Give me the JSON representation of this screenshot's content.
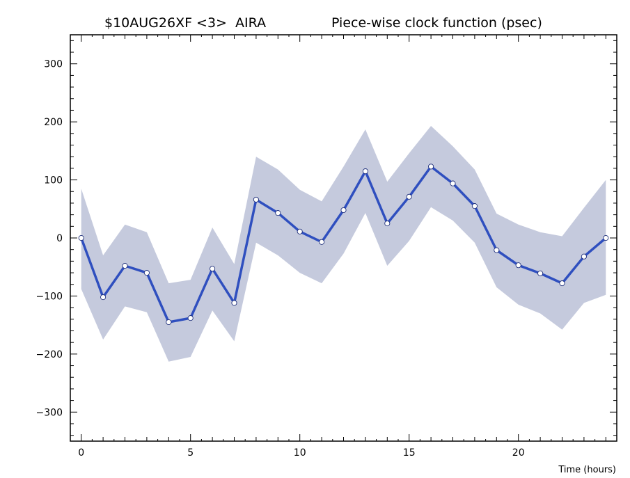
{
  "chart_data": {
    "type": "line",
    "title": "$10AUG26XF <3>  AIRA",
    "subtitle": "Piece-wise clock function (psec)",
    "xlabel": "Time (hours)",
    "ylabel": "",
    "xlim": [
      -0.5,
      24.5
    ],
    "ylim": [
      -350,
      350
    ],
    "x_ticks": [
      0,
      5,
      10,
      15,
      20
    ],
    "y_ticks": [
      -300,
      -200,
      -100,
      0,
      100,
      200,
      300
    ],
    "x_tick_labels": [
      "0",
      "5",
      "10",
      "15",
      "20"
    ],
    "y_tick_labels": [
      "−300",
      "−200",
      "−100",
      "0",
      "100",
      "200",
      "300"
    ],
    "grid": false,
    "colors": {
      "line": "#2f4fbf",
      "band": "#c5cadd",
      "axis": "#000000",
      "marker_fill": "#ffffff"
    },
    "series": [
      {
        "x": [
          0,
          1,
          2,
          3,
          4,
          5,
          6,
          7,
          8,
          9,
          10,
          11,
          12,
          13,
          14,
          15,
          16,
          17,
          18,
          19,
          20,
          21,
          22,
          23,
          24
        ],
        "values": [
          0,
          -102,
          -48,
          -60,
          -145,
          -138,
          -53,
          -112,
          66,
          43,
          11,
          -7,
          48,
          115,
          25,
          71,
          123,
          94,
          55,
          -21,
          -47,
          -61,
          -78,
          -32,
          0
        ],
        "upper": [
          85,
          -30,
          23,
          10,
          -78,
          -72,
          18,
          -45,
          140,
          118,
          83,
          63,
          123,
          187,
          97,
          146,
          193,
          158,
          118,
          42,
          23,
          10,
          3,
          52,
          100
        ],
        "lower": [
          -88,
          -175,
          -118,
          -128,
          -213,
          -205,
          -125,
          -178,
          -8,
          -30,
          -60,
          -78,
          -27,
          43,
          -48,
          -5,
          53,
          30,
          -8,
          -85,
          -115,
          -130,
          -158,
          -112,
          -98
        ]
      }
    ]
  }
}
